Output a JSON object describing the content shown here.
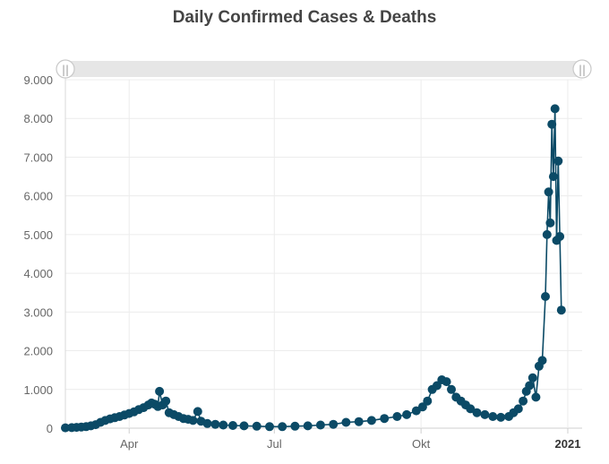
{
  "chart_data": {
    "type": "line",
    "title": "Daily Confirmed Cases & Deaths",
    "subtitle": "",
    "xlabel": "",
    "ylabel": "",
    "x_axis_type": "date",
    "xlim": [
      "2020-02-21",
      "2021-01-10"
    ],
    "ylim": [
      0,
      9000
    ],
    "y_ticks": [
      {
        "value": 0,
        "label": "0"
      },
      {
        "value": 1000,
        "label": "1.000"
      },
      {
        "value": 2000,
        "label": "2.000"
      },
      {
        "value": 3000,
        "label": "3.000"
      },
      {
        "value": 4000,
        "label": "4.000"
      },
      {
        "value": 5000,
        "label": "5.000"
      },
      {
        "value": 6000,
        "label": "6.000"
      },
      {
        "value": 7000,
        "label": "7.000"
      },
      {
        "value": 8000,
        "label": "8.000"
      },
      {
        "value": 9000,
        "label": "9.000"
      }
    ],
    "x_ticks": [
      {
        "date": "2020-04-01",
        "label": "Apr",
        "emphasis": false
      },
      {
        "date": "2020-07-01",
        "label": "Jul",
        "emphasis": false
      },
      {
        "date": "2020-10-01",
        "label": "Okt",
        "emphasis": false
      },
      {
        "date": "2021-01-01",
        "label": "2021",
        "emphasis": true
      }
    ],
    "grid": true,
    "legend": "none",
    "navigator": {
      "visible": true,
      "handle_glyph": "||"
    },
    "series": [
      {
        "color": "#0b4a66",
        "points": [
          [
            "2020-02-21",
            10
          ],
          [
            "2020-02-25",
            15
          ],
          [
            "2020-02-28",
            20
          ],
          [
            "2020-03-02",
            30
          ],
          [
            "2020-03-05",
            40
          ],
          [
            "2020-03-08",
            60
          ],
          [
            "2020-03-11",
            90
          ],
          [
            "2020-03-14",
            150
          ],
          [
            "2020-03-17",
            200
          ],
          [
            "2020-03-20",
            240
          ],
          [
            "2020-03-23",
            270
          ],
          [
            "2020-03-26",
            300
          ],
          [
            "2020-03-29",
            340
          ],
          [
            "2020-04-01",
            380
          ],
          [
            "2020-04-04",
            420
          ],
          [
            "2020-04-07",
            480
          ],
          [
            "2020-04-10",
            530
          ],
          [
            "2020-04-13",
            600
          ],
          [
            "2020-04-15",
            650
          ],
          [
            "2020-04-17",
            620
          ],
          [
            "2020-04-19",
            560
          ],
          [
            "2020-04-20",
            950
          ],
          [
            "2020-04-22",
            600
          ],
          [
            "2020-04-24",
            700
          ],
          [
            "2020-04-26",
            400
          ],
          [
            "2020-04-29",
            350
          ],
          [
            "2020-05-02",
            300
          ],
          [
            "2020-05-05",
            250
          ],
          [
            "2020-05-08",
            230
          ],
          [
            "2020-05-11",
            200
          ],
          [
            "2020-05-14",
            430
          ],
          [
            "2020-05-16",
            180
          ],
          [
            "2020-05-20",
            120
          ],
          [
            "2020-05-25",
            100
          ],
          [
            "2020-05-30",
            80
          ],
          [
            "2020-06-05",
            70
          ],
          [
            "2020-06-12",
            60
          ],
          [
            "2020-06-20",
            50
          ],
          [
            "2020-06-28",
            40
          ],
          [
            "2020-07-06",
            40
          ],
          [
            "2020-07-14",
            50
          ],
          [
            "2020-07-22",
            60
          ],
          [
            "2020-07-30",
            80
          ],
          [
            "2020-08-07",
            100
          ],
          [
            "2020-08-15",
            150
          ],
          [
            "2020-08-23",
            170
          ],
          [
            "2020-08-31",
            200
          ],
          [
            "2020-09-08",
            250
          ],
          [
            "2020-09-16",
            300
          ],
          [
            "2020-09-22",
            350
          ],
          [
            "2020-09-28",
            450
          ],
          [
            "2020-10-02",
            550
          ],
          [
            "2020-10-05",
            700
          ],
          [
            "2020-10-08",
            1000
          ],
          [
            "2020-10-11",
            1100
          ],
          [
            "2020-10-14",
            1250
          ],
          [
            "2020-10-17",
            1200
          ],
          [
            "2020-10-20",
            1000
          ],
          [
            "2020-10-23",
            800
          ],
          [
            "2020-10-26",
            700
          ],
          [
            "2020-10-29",
            600
          ],
          [
            "2020-11-01",
            500
          ],
          [
            "2020-11-05",
            400
          ],
          [
            "2020-11-10",
            350
          ],
          [
            "2020-11-15",
            300
          ],
          [
            "2020-11-20",
            280
          ],
          [
            "2020-11-25",
            300
          ],
          [
            "2020-11-28",
            400
          ],
          [
            "2020-12-01",
            500
          ],
          [
            "2020-12-04",
            700
          ],
          [
            "2020-12-06",
            950
          ],
          [
            "2020-12-08",
            1100
          ],
          [
            "2020-12-10",
            1300
          ],
          [
            "2020-12-12",
            800
          ],
          [
            "2020-12-14",
            1600
          ],
          [
            "2020-12-16",
            1750
          ],
          [
            "2020-12-18",
            3400
          ],
          [
            "2020-12-19",
            5000
          ],
          [
            "2020-12-20",
            6100
          ],
          [
            "2020-12-21",
            5300
          ],
          [
            "2020-12-22",
            7850
          ],
          [
            "2020-12-23",
            6500
          ],
          [
            "2020-12-24",
            8250
          ],
          [
            "2020-12-25",
            4850
          ],
          [
            "2020-12-26",
            6900
          ],
          [
            "2020-12-27",
            4950
          ],
          [
            "2020-12-28",
            3050
          ]
        ]
      }
    ]
  }
}
